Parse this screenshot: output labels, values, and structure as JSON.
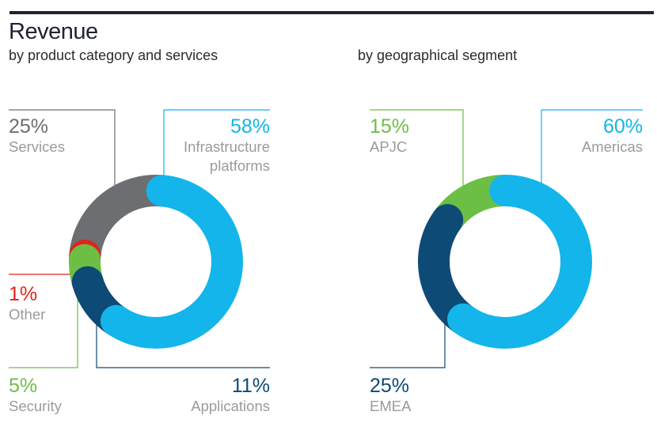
{
  "header": {
    "title": "Revenue",
    "subtitle_left": "by product category and services",
    "subtitle_right": "by geographical segment"
  },
  "chart_data": [
    {
      "type": "pie",
      "variant": "donut",
      "title": "by product category and services",
      "slices": [
        {
          "label": "Infrastructure platforms",
          "label_lines": [
            "Infrastructure",
            "platforms"
          ],
          "value": 58,
          "pct_label": "58%",
          "color": "#13b5ea"
        },
        {
          "label": "Applications",
          "label_lines": [
            "Applications"
          ],
          "value": 11,
          "pct_label": "11%",
          "color": "#0d4a76"
        },
        {
          "label": "Security",
          "label_lines": [
            "Security"
          ],
          "value": 5,
          "pct_label": "5%",
          "color": "#6cbe45"
        },
        {
          "label": "Other",
          "label_lines": [
            "Other"
          ],
          "value": 1,
          "pct_label": "1%",
          "color": "#e2231a"
        },
        {
          "label": "Services",
          "label_lines": [
            "Services"
          ],
          "value": 25,
          "pct_label": "25%",
          "color": "#6d6e71"
        }
      ]
    },
    {
      "type": "pie",
      "variant": "donut",
      "title": "by geographical segment",
      "slices": [
        {
          "label": "Americas",
          "label_lines": [
            "Americas"
          ],
          "value": 60,
          "pct_label": "60%",
          "color": "#13b5ea"
        },
        {
          "label": "EMEA",
          "label_lines": [
            "EMEA"
          ],
          "value": 25,
          "pct_label": "25%",
          "color": "#0d4a76"
        },
        {
          "label": "APJC",
          "label_lines": [
            "APJC"
          ],
          "value": 15,
          "pct_label": "15%",
          "color": "#6cbe45"
        }
      ]
    }
  ]
}
